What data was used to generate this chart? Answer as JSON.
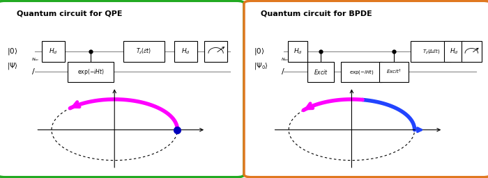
{
  "left_title": "Quantum circuit for QPE",
  "right_title": "Quantum circuit for BPDE",
  "left_border_color": "#22aa22",
  "right_border_color": "#e07820",
  "bg_color": "#ffffff",
  "arrow_magenta": "#ff00ff",
  "arrow_blue": "#2244ff",
  "dot_color": "#0000bb",
  "circuit_line_color": "#888888",
  "gate_edge_color": "#000000"
}
